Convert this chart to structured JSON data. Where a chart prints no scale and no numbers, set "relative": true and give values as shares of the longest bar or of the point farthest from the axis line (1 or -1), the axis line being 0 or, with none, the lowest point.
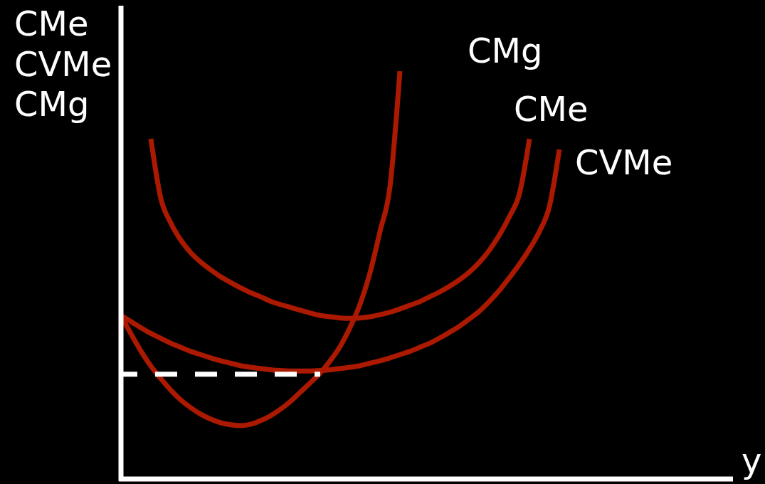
{
  "chart_data": {
    "type": "line",
    "relative": true,
    "xlabel": "y",
    "ylabel": "CMe\nCVMe\nCMg",
    "categories": [
      null,
      null,
      null,
      null,
      null,
      null,
      null,
      null,
      null,
      null,
      null,
      null,
      null,
      null,
      null,
      null,
      null,
      null,
      null,
      null,
      null,
      null,
      null,
      null,
      null,
      null,
      null,
      null,
      null,
      null,
      null,
      null,
      null,
      null,
      null,
      null,
      null,
      null,
      null,
      null,
      null,
      null,
      null,
      null,
      null,
      null,
      null,
      null,
      null,
      null,
      null,
      null,
      null,
      null,
      null,
      null,
      null,
      null,
      null,
      null,
      null,
      null
    ],
    "series": [
      {
        "name": "CMg",
        "color": "#ab1900",
        "values": [
          0.401,
          0.356,
          0.314,
          0.277,
          0.246,
          0.218,
          0.194,
          0.175,
          0.159,
          0.147,
          0.138,
          0.133,
          0.131,
          0.134,
          0.143,
          0.155,
          0.171,
          0.19,
          0.213,
          0.236,
          0.26,
          0.29,
          0.325,
          0.372,
          0.429,
          0.506,
          0.607,
          0.717,
          1,
          null,
          null,
          null,
          null,
          null,
          null,
          null,
          null,
          null,
          null,
          null,
          null,
          null,
          null,
          null,
          null,
          null,
          null,
          null,
          null,
          null,
          null,
          null,
          null,
          null,
          null,
          null,
          null,
          null,
          null,
          null,
          null,
          null
        ]
      },
      {
        "name": "CMe",
        "color": "#ab1900",
        "values": [
          null,
          null,
          null,
          0.834,
          0.688,
          0.628,
          0.586,
          0.555,
          0.532,
          0.513,
          0.496,
          0.482,
          0.469,
          0.457,
          0.447,
          0.436,
          0.428,
          0.421,
          0.414,
          0.407,
          0.401,
          0.398,
          0.395,
          0.394,
          0.395,
          0.398,
          0.403,
          0.409,
          0.417,
          0.426,
          0.435,
          0.447,
          0.459,
          0.473,
          0.489,
          0.508,
          0.532,
          0.562,
          0.599,
          0.644,
          0.7,
          0.834,
          null,
          null,
          null,
          null,
          null,
          null,
          null,
          null,
          null,
          null,
          null,
          null,
          null,
          null,
          null,
          null,
          null,
          null,
          null,
          null
        ]
      },
      {
        "name": "CVMe",
        "color": "#ab1900",
        "values": [
          0.401,
          0.386,
          0.371,
          0.357,
          0.345,
          0.333,
          0.323,
          0.313,
          0.305,
          0.297,
          0.29,
          0.284,
          0.278,
          0.274,
          0.271,
          0.268,
          0.266,
          0.265,
          0.265,
          0.265,
          0.266,
          0.268,
          0.271,
          0.274,
          0.278,
          0.284,
          0.29,
          0.297,
          0.305,
          0.313,
          0.323,
          0.333,
          0.346,
          0.36,
          0.375,
          0.393,
          0.412,
          0.436,
          0.463,
          0.494,
          0.527,
          0.564,
          0.607,
          0.668,
          0.808,
          null,
          null,
          null,
          null,
          null,
          null,
          null,
          null,
          null,
          null,
          null,
          null,
          null,
          null,
          null,
          null,
          null
        ]
      },
      {
        "color": "#ffffff",
        "line_style": "dashed",
        "values": [
          0.257,
          0.257,
          0.257,
          0.257,
          0.257,
          0.257,
          0.257,
          0.257,
          0.257,
          0.257,
          0.257,
          0.257,
          0.257,
          0.257,
          0.257,
          0.257,
          0.257,
          0.257,
          0.257,
          0.257,
          0.257,
          null,
          null,
          null,
          null,
          null,
          null,
          null,
          null,
          null,
          null,
          null,
          null,
          null,
          null,
          null,
          null,
          null,
          null,
          null,
          null,
          null,
          null,
          null,
          null,
          null,
          null,
          null,
          null,
          null,
          null,
          null,
          null,
          null,
          null,
          null,
          null,
          null,
          null,
          null,
          null,
          null
        ]
      }
    ]
  }
}
